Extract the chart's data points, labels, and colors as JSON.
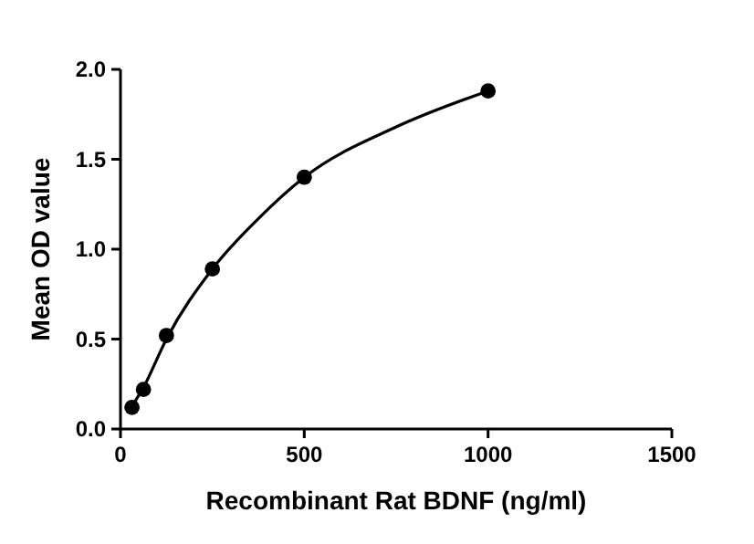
{
  "chart_data": {
    "type": "scatter",
    "xlabel": "Recombinant Rat BDNF (ng/ml)",
    "ylabel": "Mean OD value",
    "xlim": [
      0,
      1500
    ],
    "xticks": [
      0,
      500,
      1000,
      1500
    ],
    "ylim": [
      0,
      2
    ],
    "yticks": [
      {
        "value": 0,
        "label": "0.0"
      },
      {
        "value": 0.5,
        "label": "0.5"
      },
      {
        "value": 1,
        "label": "1.0"
      },
      {
        "value": 1.5,
        "label": "1.5"
      },
      {
        "value": 2,
        "label": "2.0"
      }
    ],
    "grid": false,
    "series": [
      {
        "marker": "circle",
        "color": "#000000",
        "x": [
          31.25,
          62.5,
          125,
          250,
          500,
          1000
        ],
        "values": [
          0.12,
          0.22,
          0.52,
          0.89,
          1.4,
          1.88
        ]
      },
      {
        "type": "line",
        "color": "#000000",
        "x": [
          25,
          31.25,
          62.5,
          125,
          250,
          375,
          500,
          750,
          1000
        ],
        "values": [
          0.09,
          0.12,
          0.23,
          0.5,
          0.89,
          1.17,
          1.4,
          1.68,
          1.88
        ]
      }
    ]
  }
}
